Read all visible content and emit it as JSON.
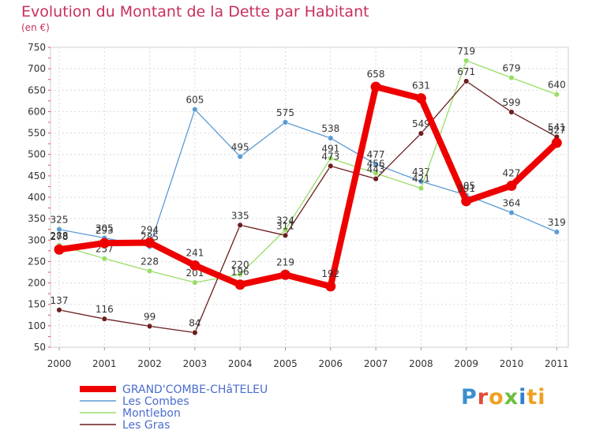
{
  "chart_data": {
    "type": "line",
    "title": "Evolution du Montant de la Dette par Habitant",
    "ylabel": "(en €)",
    "xlabel": "",
    "categories": [
      "2000",
      "2001",
      "2002",
      "2003",
      "2004",
      "2005",
      "2006",
      "2007",
      "2008",
      "2009",
      "2010",
      "2011"
    ],
    "ylim": [
      50,
      750
    ],
    "yticks": [
      50,
      100,
      150,
      200,
      250,
      300,
      350,
      400,
      450,
      500,
      550,
      600,
      650,
      700,
      750
    ],
    "grid": true,
    "legend_position": "bottom-left",
    "series": [
      {
        "name": "GRAND'COMBE-CHâTELEU",
        "color": "#ee0000",
        "values": [
          278,
          293,
          294,
          241,
          196,
          219,
          192,
          658,
          631,
          391,
          427,
          527
        ]
      },
      {
        "name": "Les Combes",
        "color": "#5b9bd5",
        "values": [
          325,
          305,
          285,
          605,
          495,
          575,
          538,
          477,
          437,
          405,
          364,
          319
        ]
      },
      {
        "name": "Montlebon",
        "color": "#99dd66",
        "values": [
          288,
          257,
          228,
          201,
          220,
          324,
          491,
          456,
          421,
          719,
          679,
          640
        ]
      },
      {
        "name": "Les Gras",
        "color": "#6b1c1c",
        "values": [
          137,
          116,
          99,
          84,
          335,
          311,
          473,
          443,
          549,
          671,
          599,
          541
        ]
      }
    ]
  },
  "brand": {
    "letters": [
      "P",
      "r",
      "o",
      "x",
      "i",
      "ti"
    ],
    "name": "Proxiti"
  }
}
